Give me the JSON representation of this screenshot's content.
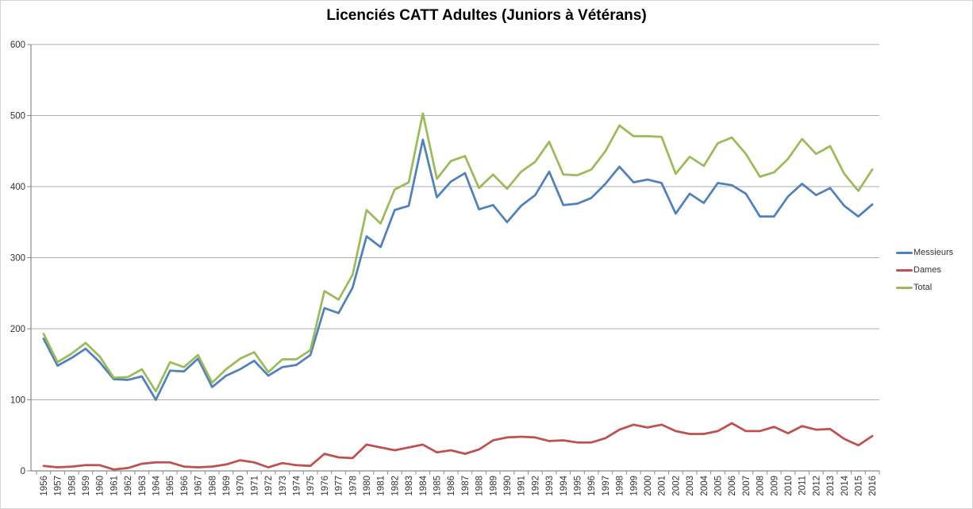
{
  "chart": {
    "title": "Licenciés CATT Adultes (Juniors à Vétérans)",
    "legend_position": "right",
    "background": "#ffffff",
    "colors": {
      "gridline": "#ababab",
      "axis": "#898989",
      "tick_text": "#333333",
      "title_text": "#000000",
      "frame_border": "#d5d5d5"
    }
  },
  "chart_data": {
    "type": "line",
    "title": "Licenciés CATT Adultes (Juniors à Vétérans)",
    "xlabel": "",
    "ylabel": "",
    "ylim": [
      0,
      600
    ],
    "yticks": [
      0,
      100,
      200,
      300,
      400,
      500,
      600
    ],
    "grid": true,
    "legend_position": "right",
    "note_missing_category": "1979 absent de l'axe",
    "categories": [
      "1956",
      "1957",
      "1958",
      "1959",
      "1960",
      "1961",
      "1962",
      "1963",
      "1964",
      "1965",
      "1966",
      "1967",
      "1968",
      "1969",
      "1970",
      "1971",
      "1972",
      "1973",
      "1974",
      "1975",
      "1976",
      "1977",
      "1978",
      "1980",
      "1981",
      "1982",
      "1983",
      "1984",
      "1985",
      "1986",
      "1987",
      "1988",
      "1989",
      "1990",
      "1991",
      "1992",
      "1993",
      "1994",
      "1995",
      "1996",
      "1997",
      "1998",
      "1999",
      "2000",
      "2001",
      "2002",
      "2003",
      "2004",
      "2005",
      "2006",
      "2007",
      "2008",
      "2009",
      "2010",
      "2011",
      "2012",
      "2013",
      "2014",
      "2015",
      "2016"
    ],
    "series": [
      {
        "name": "Messieurs",
        "color": "#4F81BD",
        "values": [
          186,
          148,
          159,
          172,
          153,
          129,
          128,
          133,
          100,
          141,
          140,
          158,
          118,
          134,
          143,
          155,
          134,
          146,
          149,
          163,
          229,
          222,
          258,
          330,
          315,
          367,
          373,
          466,
          385,
          407,
          419,
          368,
          374,
          350,
          373,
          388,
          421,
          374,
          376,
          384,
          404,
          428,
          406,
          410,
          405,
          362,
          390,
          377,
          405,
          402,
          390,
          358,
          358,
          386,
          404,
          388,
          398,
          373,
          358,
          375
        ]
      },
      {
        "name": "Dames",
        "color": "#C0504D",
        "values": [
          7,
          5,
          6,
          8,
          8,
          2,
          4,
          10,
          12,
          12,
          6,
          5,
          6,
          9,
          15,
          12,
          5,
          11,
          8,
          7,
          24,
          19,
          18,
          37,
          33,
          29,
          33,
          37,
          26,
          29,
          24,
          30,
          43,
          47,
          48,
          47,
          42,
          43,
          40,
          40,
          46,
          58,
          65,
          61,
          65,
          56,
          52,
          52,
          56,
          67,
          56,
          56,
          62,
          53,
          63,
          58,
          59,
          45,
          36,
          49
        ]
      },
      {
        "name": "Total",
        "color": "#9BBB59",
        "values": [
          193,
          153,
          165,
          180,
          161,
          131,
          132,
          143,
          112,
          153,
          146,
          163,
          124,
          143,
          158,
          167,
          139,
          157,
          157,
          170,
          253,
          241,
          276,
          367,
          348,
          396,
          406,
          503,
          411,
          436,
          443,
          398,
          417,
          397,
          421,
          435,
          463,
          417,
          416,
          424,
          450,
          486,
          471,
          471,
          470,
          418,
          442,
          429,
          461,
          469,
          446,
          414,
          420,
          439,
          467,
          446,
          457,
          418,
          394,
          424
        ]
      }
    ]
  }
}
